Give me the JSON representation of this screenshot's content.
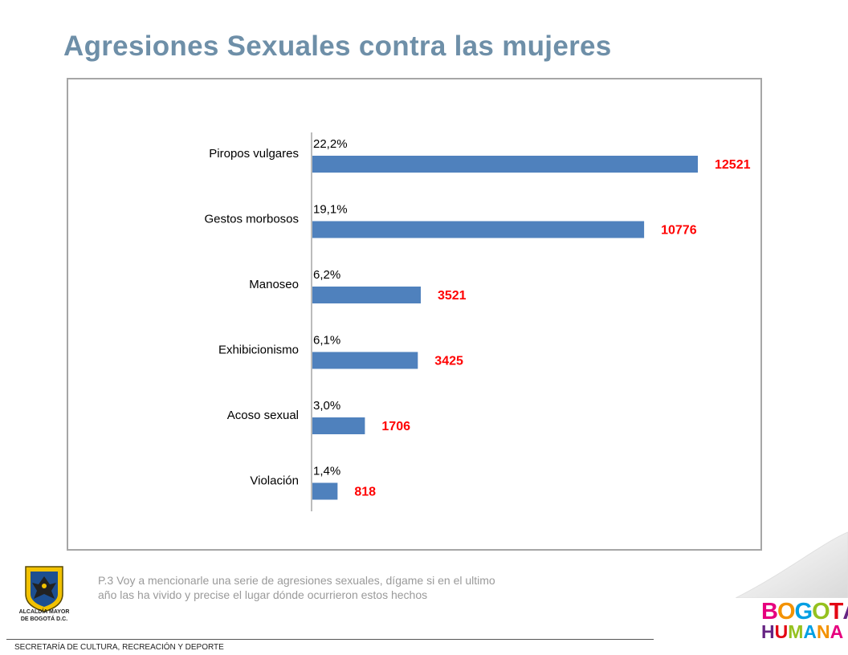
{
  "slide": {
    "title": "Agresiones Sexuales contra las mujeres",
    "question": "P.3 Voy a mencionarle una serie de agresiones sexuales, dígame si en el ultimo año las ha vivido y precise el lugar dónde ocurrieron estos hechos",
    "footer": "SECRETARÍA DE CULTURA, RECREACIÓN Y DEPORTE"
  },
  "branding": {
    "crest_line1": "ALCALDÍA MAYOR",
    "crest_line2": "DE BOGOTÁ D.C.",
    "logo_line1": "BOGOTÁ",
    "logo_line2": "HUMANA",
    "logo_colors": [
      "#e6007e",
      "#f39200",
      "#009fe3",
      "#95c11f",
      "#e30613",
      "#662483"
    ]
  },
  "chart_data": {
    "type": "bar",
    "orientation": "horizontal",
    "title": "",
    "xlabel": "",
    "ylabel": "",
    "categories": [
      "Piropos vulgares",
      "Gestos morbosos",
      "Manoseo",
      "Exhibicionismo",
      "Acoso sexual",
      "Violación"
    ],
    "percent_labels": [
      "22,2%",
      "19,1%",
      "6,2%",
      "6,1%",
      "3,0%",
      "1,4%"
    ],
    "values": [
      12521,
      10776,
      3521,
      3425,
      1706,
      818
    ],
    "xlim": [
      0,
      12521
    ],
    "bar_color": "#4f81bd",
    "count_label_color": "#ff0000",
    "grid": false,
    "legend": "none"
  }
}
